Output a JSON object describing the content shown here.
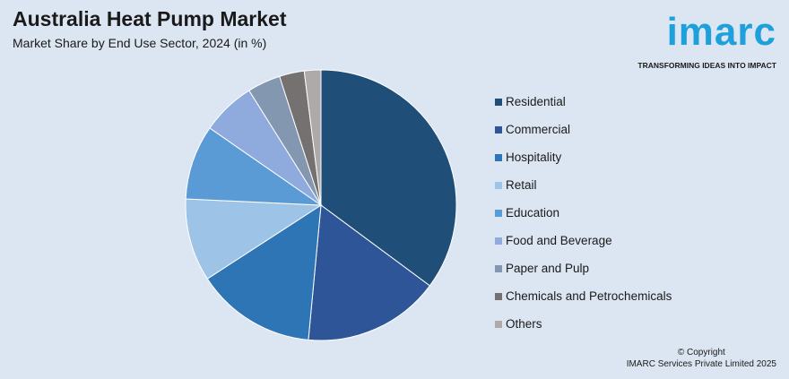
{
  "header": {
    "title": "Australia Heat Pump Market",
    "subtitle": "Market Share by End Use Sector, 2024 (in %)"
  },
  "logo": {
    "wordmark": "imarc",
    "tagline": "TRANSFORMING IDEAS INTO IMPACT",
    "color": "#1ea0db"
  },
  "chart_data": {
    "type": "pie",
    "categories": [
      "Residential",
      "Commercial",
      "Hospitality",
      "Retail",
      "Education",
      "Food and Beverage",
      "Paper and Pulp",
      "Chemicals and Petrochemicals",
      "Others"
    ],
    "values": [
      35.5,
      16.5,
      14.5,
      10,
      9,
      6.5,
      4,
      3,
      2
    ],
    "colors": [
      "#1f4e79",
      "#2e5597",
      "#2e75b6",
      "#9dc3e6",
      "#5b9bd5",
      "#8faadc",
      "#8497b0",
      "#767171",
      "#aeaaaa"
    ],
    "start": "12 o'clock",
    "direction": "clockwise",
    "legend_position": "right"
  },
  "footer": {
    "copyright_line1": "© Copyright",
    "copyright_line2": "IMARC Services Private Limited 2025"
  }
}
